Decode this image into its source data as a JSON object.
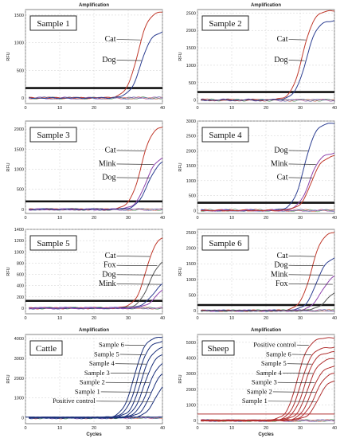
{
  "chart_data": [
    {
      "type": "line",
      "sample_label": "Sample 1",
      "title": "Amplification",
      "ylabel": "RFU",
      "xlabel": "",
      "xlim": [
        0,
        40
      ],
      "ylim": [
        -100,
        1600
      ],
      "x_ticks": [
        0,
        10,
        20,
        30,
        40
      ],
      "y_ticks": [
        0,
        500,
        1000,
        1500
      ],
      "threshold": 180,
      "series": [
        {
          "name": "Cat",
          "color": "#c0392b",
          "ct": 30.5,
          "plateau": 1580
        },
        {
          "name": "Dog",
          "color": "#2c3e91",
          "ct": 31.5,
          "plateau": 1220
        }
      ]
    },
    {
      "type": "line",
      "sample_label": "Sample 2",
      "title": "Amplification",
      "ylabel": "RFU",
      "xlabel": "",
      "xlim": [
        0,
        40
      ],
      "ylim": [
        -100,
        2600
      ],
      "x_ticks": [
        0,
        10,
        20,
        30,
        40
      ],
      "y_ticks": [
        0,
        500,
        1000,
        1500,
        2000,
        2500
      ],
      "threshold": 230,
      "series": [
        {
          "name": "Cat",
          "color": "#c0392b",
          "ct": 28.5,
          "plateau": 2580
        },
        {
          "name": "Dog",
          "color": "#2c3e91",
          "ct": 29.5,
          "plateau": 2300
        }
      ]
    },
    {
      "type": "line",
      "sample_label": "Sample 3",
      "title": "",
      "ylabel": "RFU",
      "xlabel": "",
      "xlim": [
        0,
        40
      ],
      "ylim": [
        -100,
        2200
      ],
      "x_ticks": [
        0,
        10,
        20,
        30,
        40
      ],
      "y_ticks": [
        0,
        500,
        1000,
        1500,
        2000
      ],
      "threshold": 200,
      "series": [
        {
          "name": "Cat",
          "color": "#c0392b",
          "ct": 31.5,
          "plateau": 2100
        },
        {
          "name": "Mink",
          "color": "#8e44ad",
          "ct": 33,
          "plateau": 1350
        },
        {
          "name": "Dog",
          "color": "#2c3e91",
          "ct": 33.5,
          "plateau": 1250
        }
      ]
    },
    {
      "type": "line",
      "sample_label": "Sample 4",
      "title": "",
      "ylabel": "RFU",
      "xlabel": "",
      "xlim": [
        0,
        40
      ],
      "ylim": [
        -100,
        3000
      ],
      "x_ticks": [
        0,
        10,
        20,
        30,
        40
      ],
      "y_ticks": [
        0,
        500,
        1000,
        1500,
        2000,
        2500,
        3000
      ],
      "threshold": 260,
      "series": [
        {
          "name": "Dog",
          "color": "#2c3e91",
          "ct": 29,
          "plateau": 2950
        },
        {
          "name": "Mink",
          "color": "#8e44ad",
          "ct": 30.5,
          "plateau": 1950
        },
        {
          "name": "Cat",
          "color": "#c0392b",
          "ct": 31,
          "plateau": 1850
        }
      ]
    },
    {
      "type": "line",
      "sample_label": "Sample 5",
      "title": "",
      "ylabel": "RFU",
      "xlabel": "",
      "xlim": [
        0,
        40
      ],
      "ylim": [
        -100,
        1400
      ],
      "x_ticks": [
        0,
        10,
        20,
        30,
        40
      ],
      "y_ticks": [
        0,
        200,
        400,
        600,
        800,
        1000,
        1200,
        1400
      ],
      "threshold": 130,
      "series": [
        {
          "name": "Cat",
          "color": "#c0392b",
          "ct": 33,
          "plateau": 1320
        },
        {
          "name": "Fox",
          "color": "#555555",
          "ct": 34,
          "plateau": 900
        },
        {
          "name": "Dog",
          "color": "#2c3e91",
          "ct": 35,
          "plateau": 500
        },
        {
          "name": "Mink",
          "color": "#8e44ad",
          "ct": 36,
          "plateau": 430
        }
      ]
    },
    {
      "type": "line",
      "sample_label": "Sample 6",
      "title": "",
      "ylabel": "RFU",
      "xlabel": "",
      "xlim": [
        0,
        40
      ],
      "ylim": [
        -100,
        2600
      ],
      "x_ticks": [
        0,
        10,
        20,
        30,
        40
      ],
      "y_ticks": [
        0,
        500,
        1000,
        1500,
        2000,
        2500
      ],
      "threshold": 180,
      "series": [
        {
          "name": "Cat",
          "color": "#c0392b",
          "ct": 31,
          "plateau": 2550
        },
        {
          "name": "Dog",
          "color": "#2c3e91",
          "ct": 32.5,
          "plateau": 1750
        },
        {
          "name": "Mink",
          "color": "#8e44ad",
          "ct": 34,
          "plateau": 1200
        },
        {
          "name": "Fox",
          "color": "#555555",
          "ct": 35.5,
          "plateau": 700
        }
      ]
    },
    {
      "type": "line",
      "sample_label": "Cattle",
      "title": "Amplification",
      "ylabel": "RFU",
      "xlabel": "Cycles",
      "xlim": [
        0,
        40
      ],
      "ylim": [
        -300,
        4200
      ],
      "x_ticks": [
        0,
        10,
        20,
        30,
        40
      ],
      "y_ticks": [
        0,
        1000,
        2000,
        3000,
        4000
      ],
      "threshold": 30,
      "series": [
        {
          "name": "Sample 6",
          "color": "#1a2f7a",
          "ct": 29.5,
          "plateau": 4100
        },
        {
          "name": "Sample 5",
          "color": "#1a2f7a",
          "ct": 30.5,
          "plateau": 3900
        },
        {
          "name": "Sample 4",
          "color": "#1a2f7a",
          "ct": 31.5,
          "plateau": 3600
        },
        {
          "name": "Sample 3",
          "color": "#1a2f7a",
          "ct": 32.5,
          "plateau": 3300
        },
        {
          "name": "Sample 2",
          "color": "#1a2f7a",
          "ct": 33.5,
          "plateau": 2900
        },
        {
          "name": "Sample 1",
          "color": "#1a2f7a",
          "ct": 34.5,
          "plateau": 2500
        },
        {
          "name": "Positive control",
          "color": "#1a2f7a",
          "ct": 36,
          "plateau": 2100
        }
      ]
    },
    {
      "type": "line",
      "sample_label": "Sheep",
      "title": "Amplification",
      "ylabel": "RFU",
      "xlabel": "Cycles",
      "xlim": [
        0,
        40
      ],
      "ylim": [
        -200,
        5500
      ],
      "x_ticks": [
        0,
        10,
        20,
        30,
        40
      ],
      "y_ticks": [
        0,
        1000,
        2000,
        3000,
        4000,
        5000
      ],
      "threshold": 420,
      "series": [
        {
          "name": "Positive control",
          "color": "#b03030",
          "ct": 27,
          "plateau": 5300
        },
        {
          "name": "Sample 6",
          "color": "#b03030",
          "ct": 28,
          "plateau": 4700
        },
        {
          "name": "Sample 5",
          "color": "#b03030",
          "ct": 29,
          "plateau": 4400
        },
        {
          "name": "Sample 4",
          "color": "#b03030",
          "ct": 30,
          "plateau": 4000
        },
        {
          "name": "Sample 3",
          "color": "#b03030",
          "ct": 31,
          "plateau": 3500
        },
        {
          "name": "Sample 2",
          "color": "#b03030",
          "ct": 32,
          "plateau": 3100
        },
        {
          "name": "Sample 1",
          "color": "#b03030",
          "ct": 33,
          "plateau": 2700
        }
      ]
    }
  ]
}
